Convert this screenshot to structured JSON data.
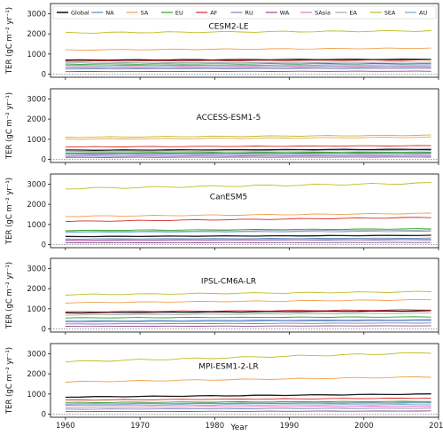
{
  "chart_data": {
    "type": "line",
    "xlabel": "Year",
    "ylabel": "TER (gC m⁻² yr⁻¹)",
    "ylim": [
      -150,
      3500
    ],
    "xlim": [
      1958,
      2010
    ],
    "x_ticks": [
      1960,
      1970,
      1980,
      1990,
      2000,
      2010
    ],
    "y_ticks": [
      0,
      1000,
      2000,
      3000
    ],
    "legend_position": "top",
    "grid": false,
    "series_names": [
      "Global",
      "NA",
      "SA",
      "EU",
      "AF",
      "RU",
      "WA",
      "SAsia",
      "EA",
      "SEA",
      "AU"
    ],
    "series_colors": [
      "#1a1a1a",
      "#5b8db8",
      "#f0a050",
      "#2ca02c",
      "#d62728",
      "#7f7fb5",
      "#8c4a8c",
      "#e377c2",
      "#9fa9a9",
      "#bcbd22",
      "#6fa8dc"
    ],
    "years": [
      1960,
      2009
    ],
    "panels": [
      {
        "title": "CESM2-LE",
        "series": [
          {
            "name": "Global",
            "values": [
              700,
              740
            ]
          },
          {
            "name": "NA",
            "values": [
              430,
              470
            ]
          },
          {
            "name": "SA",
            "values": [
              1200,
              1290
            ]
          },
          {
            "name": "EU",
            "values": [
              500,
              530
            ]
          },
          {
            "name": "AF",
            "values": [
              650,
              700
            ]
          },
          {
            "name": "RU",
            "values": [
              260,
              290
            ]
          },
          {
            "name": "WA",
            "values": [
              130,
              150
            ]
          },
          {
            "name": "SAsia",
            "values": [
              360,
              390
            ]
          },
          {
            "name": "EA",
            "values": [
              560,
              600
            ]
          },
          {
            "name": "SEA",
            "values": [
              2050,
              2150
            ]
          },
          {
            "name": "AU",
            "values": [
              330,
              350
            ]
          }
        ]
      },
      {
        "title": "ACCESS-ESM1-5",
        "series": [
          {
            "name": "Global",
            "values": [
              460,
              500
            ]
          },
          {
            "name": "NA",
            "values": [
              300,
              330
            ]
          },
          {
            "name": "SA",
            "values": [
              1000,
              1100
            ]
          },
          {
            "name": "EU",
            "values": [
              330,
              360
            ]
          },
          {
            "name": "AF",
            "values": [
              620,
              680
            ]
          },
          {
            "name": "RU",
            "values": [
              160,
              190
            ]
          },
          {
            "name": "WA",
            "values": [
              100,
              120
            ]
          },
          {
            "name": "SAsia",
            "values": [
              230,
              260
            ]
          },
          {
            "name": "EA",
            "values": [
              400,
              440
            ]
          },
          {
            "name": "SEA",
            "values": [
              1100,
              1200
            ]
          },
          {
            "name": "AU",
            "values": [
              260,
              280
            ]
          }
        ]
      },
      {
        "title": "CanESM5",
        "series": [
          {
            "name": "Global",
            "values": [
              400,
              460
            ]
          },
          {
            "name": "NA",
            "values": [
              280,
              320
            ]
          },
          {
            "name": "SA",
            "values": [
              1400,
              1550
            ]
          },
          {
            "name": "EU",
            "values": [
              700,
              780
            ]
          },
          {
            "name": "AF",
            "values": [
              1150,
              1350
            ]
          },
          {
            "name": "RU",
            "values": [
              200,
              240
            ]
          },
          {
            "name": "WA",
            "values": [
              90,
              110
            ]
          },
          {
            "name": "SAsia",
            "values": [
              230,
              270
            ]
          },
          {
            "name": "EA",
            "values": [
              650,
              720
            ]
          },
          {
            "name": "SEA",
            "values": [
              2780,
              3050
            ]
          },
          {
            "name": "AU",
            "values": [
              620,
              660
            ]
          }
        ]
      },
      {
        "title": "IPSL-CM6A-LR",
        "series": [
          {
            "name": "Global",
            "values": [
              800,
              900
            ]
          },
          {
            "name": "NA",
            "values": [
              400,
              460
            ]
          },
          {
            "name": "SA",
            "values": [
              1300,
              1450
            ]
          },
          {
            "name": "EU",
            "values": [
              550,
              600
            ]
          },
          {
            "name": "AF",
            "values": [
              850,
              950
            ]
          },
          {
            "name": "RU",
            "values": [
              250,
              300
            ]
          },
          {
            "name": "WA",
            "values": [
              130,
              160
            ]
          },
          {
            "name": "SAsia",
            "values": [
              350,
              420
            ]
          },
          {
            "name": "EA",
            "values": [
              700,
              780
            ]
          },
          {
            "name": "SEA",
            "values": [
              1700,
              1850
            ]
          },
          {
            "name": "AU",
            "values": [
              380,
              420
            ]
          }
        ]
      },
      {
        "title": "MPI-ESM1-2-LR",
        "series": [
          {
            "name": "Global",
            "values": [
              850,
              1000
            ]
          },
          {
            "name": "NA",
            "values": [
              500,
              560
            ]
          },
          {
            "name": "SA",
            "values": [
              1600,
              1850
            ]
          },
          {
            "name": "EU",
            "values": [
              580,
              640
            ]
          },
          {
            "name": "AF",
            "values": [
              700,
              800
            ]
          },
          {
            "name": "RU",
            "values": [
              250,
              300
            ]
          },
          {
            "name": "WA",
            "values": [
              130,
              160
            ]
          },
          {
            "name": "SAsia",
            "values": [
              350,
              400
            ]
          },
          {
            "name": "EA",
            "values": [
              520,
              600
            ]
          },
          {
            "name": "SEA",
            "values": [
              2600,
              3050
            ]
          },
          {
            "name": "AU",
            "values": [
              440,
              480
            ]
          }
        ]
      }
    ]
  }
}
